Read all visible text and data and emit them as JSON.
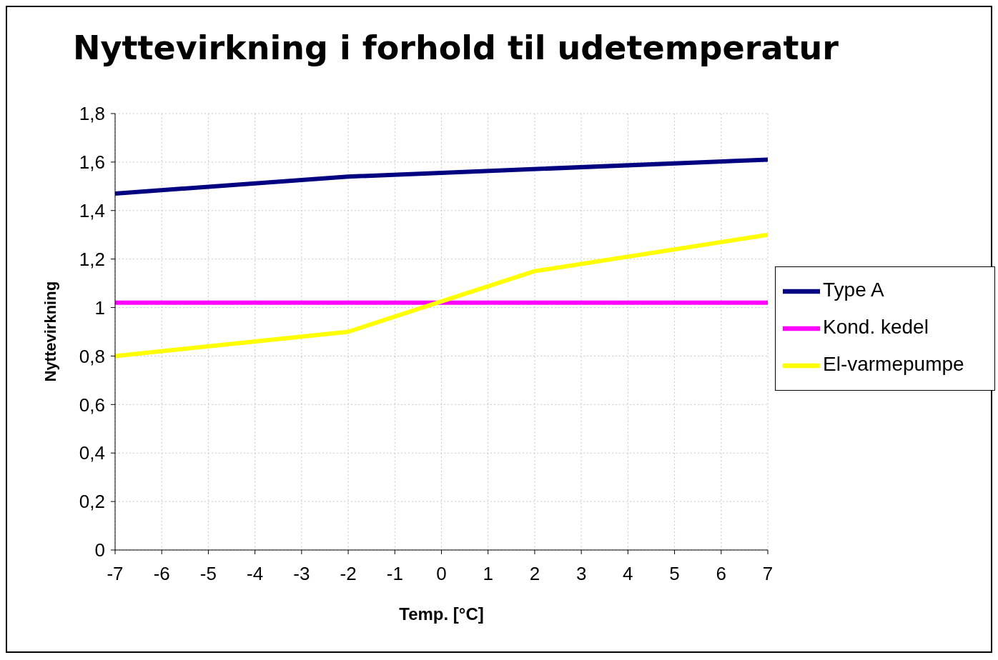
{
  "chart_data": {
    "type": "line",
    "title": "Nyttevirkning i forhold til udetemperatur",
    "xlabel": "Temp. [°C]",
    "ylabel": "Nyttevirkning",
    "xlim": [
      -7,
      7
    ],
    "xticks": [
      -7,
      -6,
      -5,
      -4,
      -3,
      -2,
      -1,
      0,
      1,
      2,
      3,
      4,
      5,
      6,
      7
    ],
    "ylim": [
      0,
      1.8
    ],
    "yticks": [
      {
        "value": 0,
        "label": "0"
      },
      {
        "value": 0.2,
        "label": "0,2"
      },
      {
        "value": 0.4,
        "label": "0,4"
      },
      {
        "value": 0.6,
        "label": "0,6"
      },
      {
        "value": 0.8,
        "label": "0,8"
      },
      {
        "value": 1,
        "label": "1"
      },
      {
        "value": 1.2,
        "label": "1,2"
      },
      {
        "value": 1.4,
        "label": "1,4"
      },
      {
        "value": 1.6,
        "label": "1,6"
      },
      {
        "value": 1.8,
        "label": "1,8"
      }
    ],
    "grid": true,
    "legend": "right",
    "marker": "none",
    "line_style": "solid",
    "series": [
      {
        "name": "Type A",
        "color": "#000080",
        "x": [
          -7,
          -2,
          7
        ],
        "values": [
          1.47,
          1.54,
          1.61
        ]
      },
      {
        "name": "Kond. kedel",
        "color": "#ff00ff",
        "x": [
          -7,
          7
        ],
        "values": [
          1.02,
          1.02
        ]
      },
      {
        "name": "El-varmepumpe",
        "color": "#ffff00",
        "x": [
          -7,
          -2,
          2,
          7
        ],
        "values": [
          0.8,
          0.9,
          1.15,
          1.3
        ]
      }
    ]
  }
}
